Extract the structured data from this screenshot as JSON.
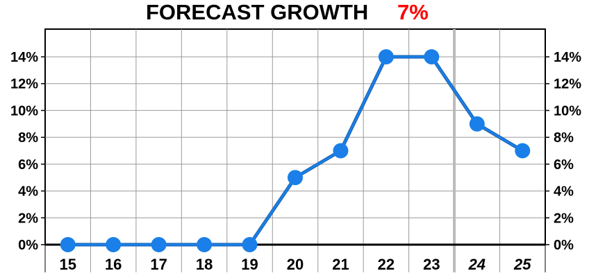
{
  "title": {
    "label": "FORECAST GROWTH",
    "value": "7%",
    "value_color": "#ff0000"
  },
  "chart_data": {
    "type": "line",
    "title": "FORECAST GROWTH",
    "categories": [
      "15",
      "16",
      "17",
      "18",
      "19",
      "20",
      "21",
      "22",
      "23",
      "24",
      "25"
    ],
    "forecast_categories": [
      "24",
      "25"
    ],
    "series": [
      {
        "values": [
          0,
          0,
          0,
          0,
          0,
          5,
          7,
          14,
          14,
          9,
          7
        ],
        "color": "#1a7fe8"
      }
    ],
    "ylim": [
      0,
      14
    ],
    "yticks": [
      "0%",
      "2%",
      "4%",
      "6%",
      "8%",
      "10%",
      "12%",
      "14%"
    ],
    "y_axis_both_sides": true,
    "grid": true,
    "legend": "none"
  }
}
